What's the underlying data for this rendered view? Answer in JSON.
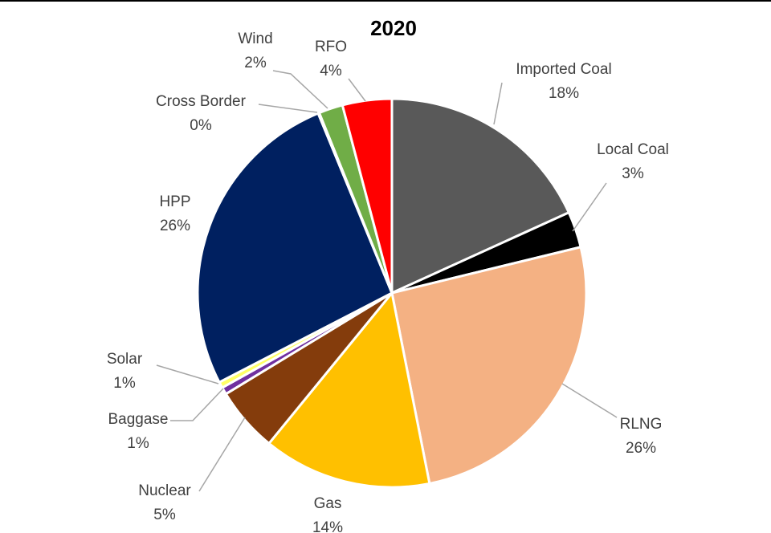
{
  "chart_data": {
    "type": "pie",
    "title": "2020",
    "slices": [
      {
        "label": "Imported Coal",
        "pct_label": "18%",
        "value": 18.2,
        "color": "#595959"
      },
      {
        "label": "Local Coal",
        "pct_label": "3%",
        "value": 3.0,
        "color": "#000000"
      },
      {
        "label": "RLNG",
        "pct_label": "26%",
        "value": 25.7,
        "color": "#f4b183"
      },
      {
        "label": "Gas",
        "pct_label": "14%",
        "value": 14.0,
        "color": "#ffc000"
      },
      {
        "label": "Nuclear",
        "pct_label": "5%",
        "value": 5.4,
        "color": "#843c0c"
      },
      {
        "label": "Baggase",
        "pct_label": "1%",
        "value": 0.6,
        "color": "#7030a0"
      },
      {
        "label": "Solar",
        "pct_label": "1%",
        "value": 0.5,
        "color": "#ffff66"
      },
      {
        "label": "HPP",
        "pct_label": "26%",
        "value": 26.4,
        "color": "#002060"
      },
      {
        "label": "Cross Border",
        "pct_label": "0%",
        "value": 0.1,
        "color": "#a5a5a5"
      },
      {
        "label": "Wind",
        "pct_label": "2%",
        "value": 2.0,
        "color": "#70ad47"
      },
      {
        "label": "RFO",
        "pct_label": "4%",
        "value": 4.1,
        "color": "#ff0000"
      }
    ],
    "legend": "none"
  }
}
